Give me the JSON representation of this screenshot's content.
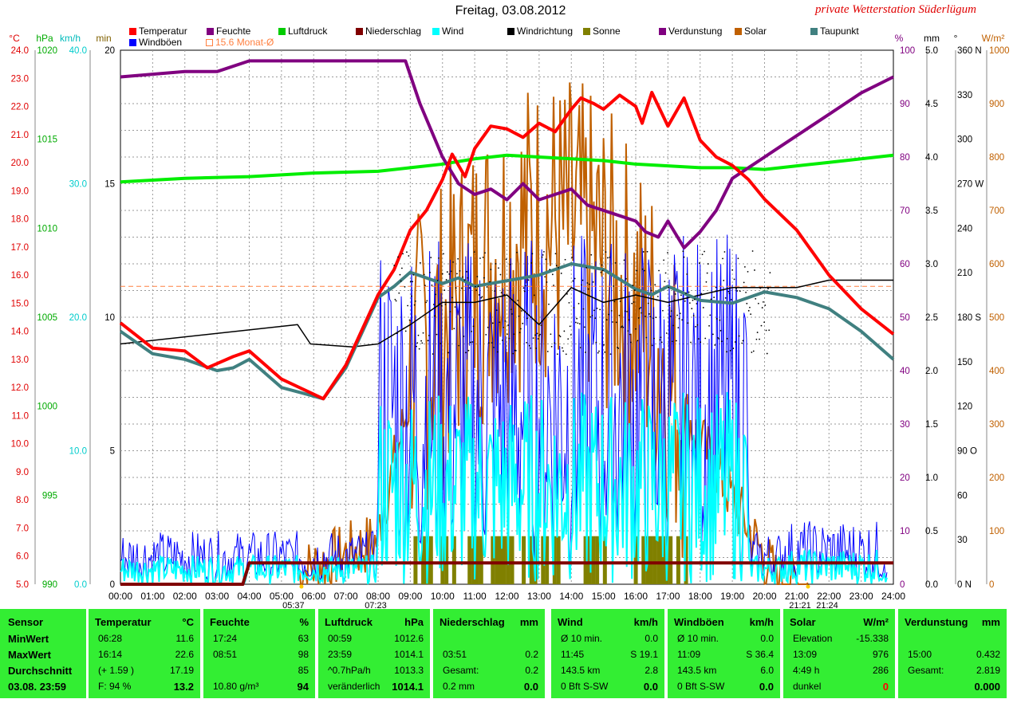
{
  "title": "Freitag, 03.08.2012",
  "brand": "private Wetterstation Süderlügum",
  "legend_row1": [
    {
      "label": "Temperatur",
      "color": "#ff0000"
    },
    {
      "label": "Feuchte",
      "color": "#800080"
    },
    {
      "label": "Luftdruck",
      "color": "#00cc00"
    },
    {
      "label": "Niederschlag",
      "color": "#800000"
    },
    {
      "label": "Wind",
      "color": "#00ffff"
    },
    {
      "label": "Windrichtung",
      "color": "#000000"
    },
    {
      "label": "Sonne",
      "color": "#808000"
    },
    {
      "label": "Verdunstung",
      "color": "#800080"
    },
    {
      "label": "Solar",
      "color": "#c06000"
    },
    {
      "label": "Taupunkt",
      "color": "#408080"
    }
  ],
  "legend_row2": [
    {
      "label": "Windböen",
      "color": "#0000ff"
    },
    {
      "label": "15.6 Monat-Ø",
      "color": "#ff8040"
    }
  ],
  "axes": {
    "units_left": [
      "°C",
      "hPa",
      "km/h",
      "min"
    ],
    "units_right": [
      "%",
      "mm",
      "°",
      "W/m²"
    ],
    "temp_ticks": [
      "24.0",
      "23.0",
      "22.0",
      "21.0",
      "20.0",
      "19.0",
      "18.0",
      "17.0",
      "16.0",
      "15.0",
      "14.0",
      "13.0",
      "12.0",
      "11.0",
      "10.0",
      "9.0",
      "8.0",
      "7.0",
      "6.0",
      "5.0"
    ],
    "hpa_ticks": [
      "1020",
      "1015",
      "1010",
      "1005",
      "1000",
      "995",
      "990"
    ],
    "kmh_ticks": [
      "40.0",
      "30.0",
      "20.0",
      "10.0",
      "0.0"
    ],
    "min_ticks": [
      "20",
      "15",
      "10",
      "5",
      "0"
    ],
    "pct_ticks": [
      "100",
      "90",
      "80",
      "70",
      "60",
      "50",
      "40",
      "30",
      "20",
      "10",
      "0"
    ],
    "mm_ticks": [
      "5.0",
      "4.5",
      "4.0",
      "3.5",
      "3.0",
      "2.5",
      "2.0",
      "1.5",
      "1.0",
      "0.5",
      "0.0"
    ],
    "deg_ticks": [
      "360 N",
      "330",
      "300",
      "270 W",
      "240",
      "210",
      "180 S",
      "150",
      "120",
      "90  O",
      "60",
      "30",
      "0   N"
    ],
    "wm2_ticks": [
      "1000",
      "900",
      "800",
      "700",
      "600",
      "500",
      "400",
      "300",
      "200",
      "100",
      "0"
    ],
    "time_ticks": [
      "00:00",
      "01:00",
      "02:00",
      "03:00",
      "04:00",
      "05:00",
      "06:00",
      "07:00",
      "08:00",
      "09:00",
      "10:00",
      "11:00",
      "12:00",
      "13:00",
      "14:00",
      "15:00",
      "16:00",
      "17:00",
      "18:00",
      "19:00",
      "20:00",
      "21:00",
      "22:00",
      "23:00",
      "24:00"
    ],
    "sun_markers": [
      "05:37",
      "07:23",
      "21:21",
      "21:24"
    ]
  },
  "chart_data": {
    "type": "line",
    "x_unit": "time of day",
    "series": [
      {
        "name": "Temperatur",
        "unit": "°C",
        "x": [
          0,
          1,
          2,
          2.7,
          3.5,
          4,
          5,
          6.3,
          7,
          8,
          8.5,
          9,
          9.5,
          10,
          10.3,
          10.7,
          11,
          11.5,
          12,
          12.5,
          13,
          13.5,
          14,
          14.3,
          14.7,
          15,
          15.5,
          16,
          16.2,
          16.5,
          17,
          17.5,
          18,
          18.5,
          19,
          19.5,
          20,
          21,
          22,
          23,
          24
        ],
        "y": [
          14.3,
          13.4,
          13.3,
          12.7,
          13.1,
          13.3,
          12.3,
          11.6,
          12.8,
          15.3,
          16.2,
          17.6,
          18.3,
          19.4,
          20.3,
          19.5,
          20.5,
          21.3,
          21.2,
          20.9,
          21.4,
          21.1,
          21.9,
          22.3,
          22.1,
          21.9,
          22.4,
          22.0,
          21.4,
          22.5,
          21.3,
          22.3,
          20.8,
          20.2,
          19.9,
          19.4,
          18.7,
          17.6,
          16.0,
          14.8,
          13.9
        ]
      },
      {
        "name": "Taupunkt",
        "unit": "°C",
        "x": [
          0,
          1,
          2,
          3,
          3.5,
          4,
          5,
          6.3,
          7,
          8,
          8.5,
          9,
          10,
          10.5,
          11,
          12,
          13,
          14,
          15,
          16,
          16.5,
          17,
          18,
          19,
          20,
          21,
          22,
          23,
          24
        ],
        "y": [
          14.0,
          13.2,
          13.0,
          12.6,
          12.7,
          13.0,
          12.0,
          11.6,
          12.7,
          15.2,
          15.6,
          16.1,
          15.7,
          15.9,
          15.6,
          15.8,
          16.0,
          16.4,
          16.2,
          15.5,
          15.3,
          15.6,
          15.1,
          15.0,
          15.4,
          15.2,
          14.8,
          14.0,
          13.0
        ]
      },
      {
        "name": "Feuchte",
        "unit": "%",
        "x": [
          0,
          1,
          2,
          3,
          4,
          5,
          6,
          7,
          8,
          8.85,
          9.3,
          10,
          10.5,
          11,
          11.5,
          12,
          12.5,
          13,
          13.5,
          14,
          14.5,
          15,
          15.5,
          16,
          16.3,
          16.7,
          17,
          17.3,
          17.5,
          18,
          18.5,
          19,
          19.5,
          20,
          20.5,
          21,
          21.5,
          22,
          22.5,
          23,
          24
        ],
        "y": [
          95,
          95.5,
          96,
          96,
          98,
          98,
          98,
          98,
          98,
          98,
          90,
          80,
          75,
          73,
          74,
          72,
          75,
          72,
          73,
          74,
          71,
          70,
          69,
          68,
          66,
          65,
          68,
          65,
          63,
          66,
          70,
          76,
          78,
          80,
          82,
          84,
          86,
          88,
          90,
          92,
          95
        ]
      },
      {
        "name": "Luftdruck",
        "unit": "hPa",
        "x": [
          0,
          2,
          4,
          6,
          8,
          9,
          10,
          11,
          12,
          13,
          14,
          15,
          16,
          17,
          18,
          19,
          20,
          21,
          22,
          23,
          24
        ],
        "y": [
          1012.6,
          1012.8,
          1012.9,
          1013.1,
          1013.2,
          1013.4,
          1013.6,
          1013.9,
          1014.1,
          1014.0,
          1013.9,
          1013.8,
          1013.6,
          1013.5,
          1013.4,
          1013.4,
          1013.3,
          1013.5,
          1013.7,
          1013.9,
          1014.1
        ]
      },
      {
        "name": "Windrichtung",
        "unit": "°",
        "x": [
          0,
          5.5,
          5.9,
          7.2,
          8,
          9,
          10,
          11,
          12,
          13,
          14,
          15,
          16,
          17,
          18,
          19,
          20,
          21,
          22,
          23,
          24
        ],
        "y": [
          162,
          175,
          162,
          160,
          162,
          175,
          190,
          190,
          195,
          175,
          200,
          190,
          195,
          190,
          195,
          200,
          200,
          200,
          205,
          205,
          205
        ]
      },
      {
        "name": "Verdunstung",
        "unit": "mm",
        "x": [
          0,
          3.8,
          4.0,
          21.2,
          21.3,
          24
        ],
        "y": [
          0,
          0,
          0.2,
          0.2,
          0.2,
          0.2
        ]
      }
    ],
    "month_avg_temp": 15.6,
    "ylim_temp": [
      5,
      24
    ],
    "ylim_hpa": [
      990,
      1020
    ],
    "ylim_kmh": [
      0,
      40
    ],
    "ylim_min": [
      0,
      20
    ],
    "ylim_pct": [
      0,
      100
    ],
    "ylim_mm": [
      0,
      5
    ],
    "ylim_deg": [
      0,
      360
    ],
    "ylim_wm2": [
      0,
      1000
    ],
    "xlim": [
      0,
      24
    ],
    "grid": true
  },
  "table": {
    "sensor": {
      "header": "Sensor",
      "rows": [
        "MinWert",
        "MaxWert",
        "Durchschnitt",
        "03.08. 23:59"
      ]
    },
    "temperatur": {
      "header": "Temperatur",
      "unit": "°C",
      "rows": [
        [
          "06:28",
          "11.6"
        ],
        [
          "16:14",
          "22.6"
        ],
        [
          "(+ 1.59 )",
          "17.19"
        ],
        [
          "F: 94 %",
          "13.2"
        ]
      ]
    },
    "feuchte": {
      "header": "Feuchte",
      "unit": "%",
      "rows": [
        [
          "17:24",
          "63"
        ],
        [
          "08:51",
          "98"
        ],
        [
          "",
          "85"
        ],
        [
          "10.80 g/m³",
          "94"
        ]
      ]
    },
    "luftdruck": {
      "header": "Luftdruck",
      "unit": "hPa",
      "rows": [
        [
          "00:59",
          "1012.6"
        ],
        [
          "23:59",
          "1014.1"
        ],
        [
          "^0.7hPa/h",
          "1013.3"
        ],
        [
          "veränderlich",
          "1014.1"
        ]
      ]
    },
    "niederschlag": {
      "header": "Niederschlag",
      "unit": "mm",
      "rows": [
        [
          "",
          ""
        ],
        [
          "03:51",
          "0.2"
        ],
        [
          "Gesamt:",
          "0.2"
        ],
        [
          "0.2 mm",
          "0.0"
        ]
      ]
    },
    "wind": {
      "header": "Wind",
      "unit": "km/h",
      "rows": [
        [
          "Ø 10 min.",
          "0.0"
        ],
        [
          "11:45",
          "S 19.1"
        ],
        [
          "143.5 km",
          "2.8"
        ],
        [
          "0 Bft S-SW",
          "0.0"
        ]
      ]
    },
    "windboeen": {
      "header": "Windböen",
      "unit": "km/h",
      "rows": [
        [
          "Ø 10 min.",
          "0.0"
        ],
        [
          "11:09",
          "S 36.4"
        ],
        [
          "143.5 km",
          "6.0"
        ],
        [
          "0 Bft S-SW",
          "0.0"
        ]
      ]
    },
    "solar": {
      "header": "Solar",
      "unit": "W/m²",
      "rows": [
        [
          "Elevation",
          "-15.338"
        ],
        [
          "13:09",
          "976"
        ],
        [
          "4:49 h",
          "286"
        ],
        [
          "dunkel",
          "0"
        ]
      ]
    },
    "verdunstung": {
      "header": "Verdunstung",
      "unit": "mm",
      "rows": [
        [
          "",
          ""
        ],
        [
          "15:00",
          "0.432"
        ],
        [
          "Gesamt:",
          "2.819"
        ],
        [
          "",
          "0.000"
        ]
      ]
    }
  }
}
